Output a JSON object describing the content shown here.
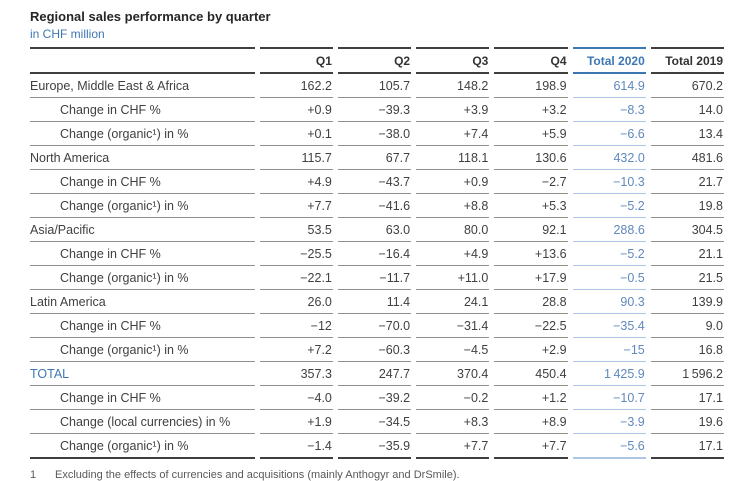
{
  "header": {
    "title": "Regional sales performance by quarter",
    "subtitle": "in CHF million"
  },
  "table": {
    "columns": [
      "Q1",
      "Q2",
      "Q3",
      "Q4",
      "Total 2020",
      "Total 2019"
    ],
    "rows": [
      {
        "label": "Europe, Middle East & Africa",
        "type": "region",
        "values": [
          "162.2",
          "105.7",
          "148.2",
          "198.9",
          "614.9",
          "670.2"
        ]
      },
      {
        "label": "Change in CHF %",
        "type": "sub",
        "values": [
          "+0.9",
          "−39.3",
          "+3.9",
          "+3.2",
          "−8.3",
          "14.0"
        ]
      },
      {
        "label": "Change (organic¹) in %",
        "type": "sub",
        "values": [
          "+0.1",
          "−38.0",
          "+7.4",
          "+5.9",
          "−6.6",
          "13.4"
        ]
      },
      {
        "label": "North America",
        "type": "region",
        "values": [
          "115.7",
          "67.7",
          "118.1",
          "130.6",
          "432.0",
          "481.6"
        ]
      },
      {
        "label": "Change in CHF %",
        "type": "sub",
        "values": [
          "+4.9",
          "−43.7",
          "+0.9",
          "−2.7",
          "−10.3",
          "21.7"
        ]
      },
      {
        "label": "Change (organic¹) in %",
        "type": "sub",
        "values": [
          "+7.7",
          "−41.6",
          "+8.8",
          "+5.3",
          "−5.2",
          "19.8"
        ]
      },
      {
        "label": "Asia/Pacific",
        "type": "region",
        "values": [
          "53.5",
          "63.0",
          "80.0",
          "92.1",
          "288.6",
          "304.5"
        ]
      },
      {
        "label": "Change in CHF %",
        "type": "sub",
        "values": [
          "−25.5",
          "−16.4",
          "+4.9",
          "+13.6",
          "−5.2",
          "21.1"
        ]
      },
      {
        "label": "Change (organic¹) in %",
        "type": "sub",
        "values": [
          "−22.1",
          "−11.7",
          "+11.0",
          "+17.9",
          "−0.5",
          "21.5"
        ]
      },
      {
        "label": "Latin America",
        "type": "region",
        "values": [
          "26.0",
          "11.4",
          "24.1",
          "28.8",
          "90.3",
          "139.9"
        ]
      },
      {
        "label": "Change in CHF %",
        "type": "sub",
        "values": [
          "−12",
          "−70.0",
          "−31.4",
          "−22.5",
          "−35.4",
          "9.0"
        ]
      },
      {
        "label": "Change (organic¹) in %",
        "type": "sub",
        "values": [
          "+7.2",
          "−60.3",
          "−4.5",
          "+2.9",
          "−15",
          "16.8"
        ]
      },
      {
        "label": "TOTAL",
        "type": "total",
        "values": [
          "357.3",
          "247.7",
          "370.4",
          "450.4",
          "1 425.9",
          "1 596.2"
        ]
      },
      {
        "label": "Change in CHF %",
        "type": "sub",
        "values": [
          "−4.0",
          "−39.2",
          "−0.2",
          "+1.2",
          "−10.7",
          "17.1"
        ]
      },
      {
        "label": "Change (local currencies) in %",
        "type": "sub",
        "values": [
          "+1.9",
          "−34.5",
          "+8.3",
          "+8.9",
          "−3.9",
          "19.6"
        ]
      },
      {
        "label": "Change (organic¹) in %",
        "type": "sub",
        "values": [
          "−1.4",
          "−35.9",
          "+7.7",
          "+7.7",
          "−5.6",
          "17.1"
        ]
      }
    ]
  },
  "footnote": {
    "marker": "1",
    "text": "Excluding the effects of currencies and acquisitions (mainly Anthogyr and DrSmile)."
  },
  "colors": {
    "accent_blue": "#3d77b3",
    "value_blue": "#6089bd",
    "light_blue_border": "#abc7e3",
    "dark_border": "#3f3f3f",
    "row_border": "#8f8f8f",
    "text_dark": "#404040"
  }
}
